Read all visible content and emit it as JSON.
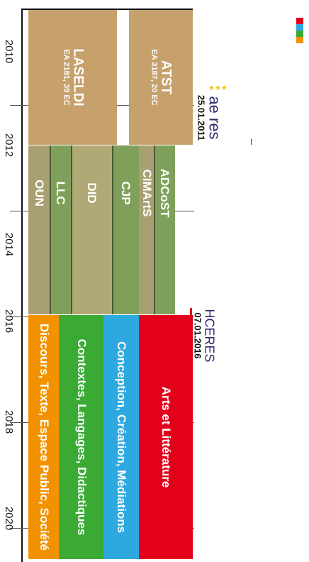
{
  "years": [
    "2010",
    "2012",
    "2014",
    "2016",
    "2018",
    "2020"
  ],
  "labs_old": [
    {
      "name": "ATST",
      "details": "EA 3187, 20 EC",
      "color": "#c6a16b"
    },
    {
      "name": "LASELDI",
      "details": "EA 2181, 39 EC",
      "color": "#c6a16b"
    }
  ],
  "teams": [
    {
      "name": "ADCoST",
      "color": "#7fa05a"
    },
    {
      "name": "CIMArtS",
      "color": "#a8a072"
    },
    {
      "name": "CJP",
      "color": "#7fa05a"
    },
    {
      "name": "DID",
      "color": "#b0a875"
    },
    {
      "name": "LLC",
      "color": "#7fa05a"
    },
    {
      "name": "OUN",
      "color": "#a8a072"
    }
  ],
  "axes_new": [
    {
      "name": "Arts et Littérature",
      "color": "#e3001b"
    },
    {
      "name": "Conception, Création, Médiations",
      "color": "#2ea9df"
    },
    {
      "name": "Contextes, Langages, Didactiques",
      "color": "#3aaa35"
    },
    {
      "name": "Discours, Texte, Espace Public, Société",
      "color": "#f39200"
    }
  ],
  "evaluations": [
    {
      "logo_text": "ae res",
      "date": "25.01.2011"
    },
    {
      "name": "HCERES",
      "date": "07.01.2016"
    }
  ],
  "corner_logo_colors": [
    "#e3001b",
    "#2ea9df",
    "#3aaa35",
    "#f39200"
  ]
}
